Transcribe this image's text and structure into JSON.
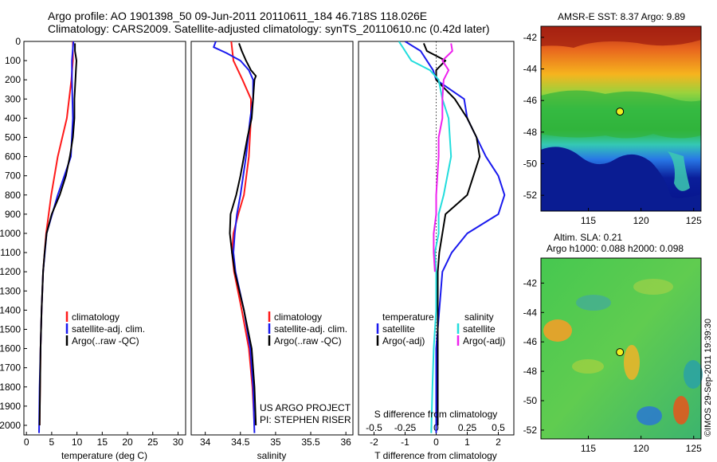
{
  "header": {
    "line1": "Argo profile: AO 1901398_50 09-Jun-2011 20110611_184 46.718S 118.026E",
    "line2": "Climatology: CARS2009. Satellite-adjusted climatology: synTS_20110610.nc (0.42d later)"
  },
  "colors": {
    "climatology": "#ff1a1a",
    "satellite": "#1a1aee",
    "argo": "#000000",
    "s_satellite": "#22dddd",
    "s_argo": "#ee22ee"
  },
  "chart_data": [
    {
      "id": "temperature",
      "type": "line",
      "xlabel": "temperature (deg C)",
      "ylabel": "",
      "xlim": [
        -0.5,
        31.5
      ],
      "ylim": [
        2050,
        0
      ],
      "xticks": [
        "0",
        "5",
        "10",
        "15",
        "20",
        "25",
        "30"
      ],
      "yticks": [
        "0",
        "100",
        "200",
        "300",
        "400",
        "500",
        "600",
        "700",
        "800",
        "900",
        "1000",
        "1100",
        "1200",
        "1300",
        "1400",
        "1500",
        "1600",
        "1700",
        "1800",
        "1900",
        "2000"
      ],
      "legend": [
        "climatology",
        "satellite-adj. clim.",
        "Argo(..raw -QC)"
      ],
      "series": [
        {
          "name": "climatology",
          "color_key": "climatology",
          "depth": [
            0,
            100,
            200,
            400,
            600,
            800,
            1000,
            1200,
            1400,
            1600,
            1800,
            2000
          ],
          "values": [
            9.2,
            9.2,
            8.9,
            8.0,
            6.2,
            4.9,
            3.9,
            3.3,
            3.0,
            2.8,
            2.7,
            2.6
          ]
        },
        {
          "name": "satellite-adj. clim.",
          "color_key": "satellite",
          "depth": [
            0,
            100,
            200,
            400,
            600,
            700,
            800,
            1000,
            1200,
            1400,
            1600,
            1800,
            2040
          ],
          "values": [
            9.3,
            9.0,
            9.0,
            9.2,
            8.8,
            7.5,
            6.2,
            4.0,
            3.3,
            3.0,
            2.8,
            2.6,
            2.5
          ]
        },
        {
          "name": "Argo(..raw -QC)",
          "color_key": "argo",
          "depth": [
            10,
            50,
            100,
            150,
            200,
            300,
            400,
            500,
            600,
            700,
            800,
            900,
            1000,
            1100,
            1200,
            1400,
            1600,
            1800,
            2000
          ],
          "values": [
            9.6,
            9.6,
            9.9,
            9.8,
            9.7,
            9.5,
            9.5,
            9.2,
            8.6,
            7.8,
            6.6,
            5.0,
            4.0,
            3.6,
            3.3,
            3.0,
            2.8,
            2.7,
            2.6
          ]
        }
      ]
    },
    {
      "id": "salinity",
      "type": "line",
      "xlabel": "salinity",
      "xlim": [
        33.8,
        36.1
      ],
      "ylim": [
        2050,
        0
      ],
      "xticks": [
        "34",
        "34.5",
        "35",
        "35.5",
        "36"
      ],
      "legend": [
        "climatology",
        "satellite-adj. clim.",
        "Argo(..raw -QC)"
      ],
      "annotation": [
        "US ARGO PROJECT",
        "PI: STEPHEN RISER"
      ],
      "series": [
        {
          "name": "climatology",
          "color_key": "climatology",
          "depth": [
            0,
            100,
            200,
            300,
            400,
            600,
            800,
            900,
            1000,
            1100,
            1200,
            1400,
            1600,
            1800,
            2000
          ],
          "values": [
            34.37,
            34.4,
            34.53,
            34.65,
            34.65,
            34.62,
            34.55,
            34.47,
            34.4,
            34.38,
            34.41,
            34.52,
            34.62,
            34.67,
            34.7
          ]
        },
        {
          "name": "satellite-adj. clim.",
          "color_key": "satellite",
          "depth": [
            0,
            30,
            60,
            100,
            150,
            200,
            300,
            400,
            600,
            800,
            900,
            1000,
            1100,
            1200,
            1400,
            1600,
            1800,
            2040
          ],
          "values": [
            34.15,
            34.12,
            34.3,
            34.5,
            34.62,
            34.68,
            34.68,
            34.64,
            34.58,
            34.5,
            34.45,
            34.42,
            34.4,
            34.43,
            34.55,
            34.64,
            34.68,
            34.7
          ]
        },
        {
          "name": "Argo(..raw -QC)",
          "color_key": "argo",
          "depth": [
            10,
            50,
            100,
            150,
            180,
            200,
            300,
            400,
            500,
            600,
            700,
            800,
            900,
            1000,
            1100,
            1200,
            1400,
            1600,
            1800,
            2000
          ],
          "values": [
            34.48,
            34.52,
            34.58,
            34.65,
            34.72,
            34.7,
            34.68,
            34.66,
            34.6,
            34.55,
            34.5,
            34.44,
            34.36,
            34.35,
            34.38,
            34.42,
            34.55,
            34.66,
            34.7,
            34.72
          ]
        }
      ]
    },
    {
      "id": "differences",
      "type": "line",
      "xlabel": "T difference from climatology",
      "xlabel_top": "S difference from climatology",
      "xlim": [
        -2.5,
        2.5
      ],
      "ylim": [
        2050,
        0
      ],
      "xticks_top": [
        "-0.5",
        "-0.25",
        "0",
        "0.25",
        "0.5"
      ],
      "xticks": [
        "-2",
        "-1",
        "0",
        "1",
        "2"
      ],
      "legend_titles": [
        "temperature",
        "salinity"
      ],
      "legend": [
        "satellite",
        "Argo(-adj)",
        "satellite",
        "Argo(-adj)"
      ],
      "series": [
        {
          "name": "satellite",
          "group": "temperature",
          "color_key": "satellite",
          "depth": [
            0,
            50,
            100,
            150,
            200,
            300,
            400,
            500,
            600,
            700,
            800,
            900,
            1000,
            1100,
            1200,
            1400,
            1600,
            1800,
            2040
          ],
          "values": [
            -1.0,
            -0.5,
            -0.3,
            -0.1,
            0.0,
            0.9,
            1.0,
            1.3,
            1.6,
            2.0,
            2.2,
            2.0,
            1.0,
            0.5,
            0.2,
            0.1,
            0.0,
            0.0,
            0.0
          ]
        },
        {
          "name": "Argo(-adj)",
          "group": "temperature",
          "color_key": "argo",
          "depth": [
            10,
            50,
            100,
            150,
            200,
            300,
            400,
            500,
            600,
            700,
            800,
            900,
            1000,
            1100,
            1200,
            1400,
            1600,
            1800,
            2000
          ],
          "values": [
            -0.4,
            -0.3,
            0.3,
            0.0,
            0.0,
            0.6,
            1.0,
            1.3,
            1.4,
            1.2,
            1.0,
            0.3,
            0.2,
            0.1,
            0.05,
            0.05,
            0.05,
            0.05,
            0.05
          ]
        },
        {
          "name": "satellite",
          "group": "salinity",
          "color_key": "s_satellite",
          "depth": [
            0,
            50,
            100,
            150,
            200,
            300,
            400,
            600,
            800,
            900,
            1000,
            1100,
            1200,
            1400,
            1600,
            1800,
            2040
          ],
          "values": [
            -0.3,
            -0.25,
            -0.2,
            -0.05,
            0.02,
            0.05,
            0.1,
            0.12,
            0.06,
            0.02,
            0.02,
            -0.01,
            0.0,
            0.0,
            -0.02,
            -0.03,
            -0.04
          ]
        },
        {
          "name": "Argo(-adj)",
          "group": "salinity",
          "color_key": "s_argo",
          "depth": [
            10,
            50,
            100,
            150,
            200,
            300,
            400,
            500,
            600,
            800,
            900,
            1000,
            1100,
            1200
          ],
          "values": [
            0.12,
            0.13,
            0.05,
            0.1,
            0.06,
            0.05,
            0.05,
            0.02,
            0.02,
            0.0,
            0.0,
            -0.02,
            -0.02,
            -0.01
          ]
        }
      ]
    }
  ],
  "maps": [
    {
      "id": "sst-map",
      "title": "AMSR-E SST: 8.37  Argo: 9.89",
      "yticks": [
        "-42",
        "-44",
        "-46",
        "-48",
        "-50",
        "-52"
      ],
      "xticks": [
        "115",
        "120",
        "125"
      ],
      "float_marker": {
        "lon": 118.0,
        "lat": -46.7
      }
    },
    {
      "id": "sla-map",
      "title_line1": "Altim. SLA: 0.21",
      "title_line2": "Argo h1000: 0.088 h2000: 0.098",
      "yticks": [
        "-42",
        "-44",
        "-46",
        "-48",
        "-50",
        "-52"
      ],
      "xticks": [
        "115",
        "120",
        "125"
      ],
      "float_marker": {
        "lon": 118.0,
        "lat": -46.7
      }
    }
  ],
  "stamp": "©IMOS 29-Sep-2011 19:39:30"
}
